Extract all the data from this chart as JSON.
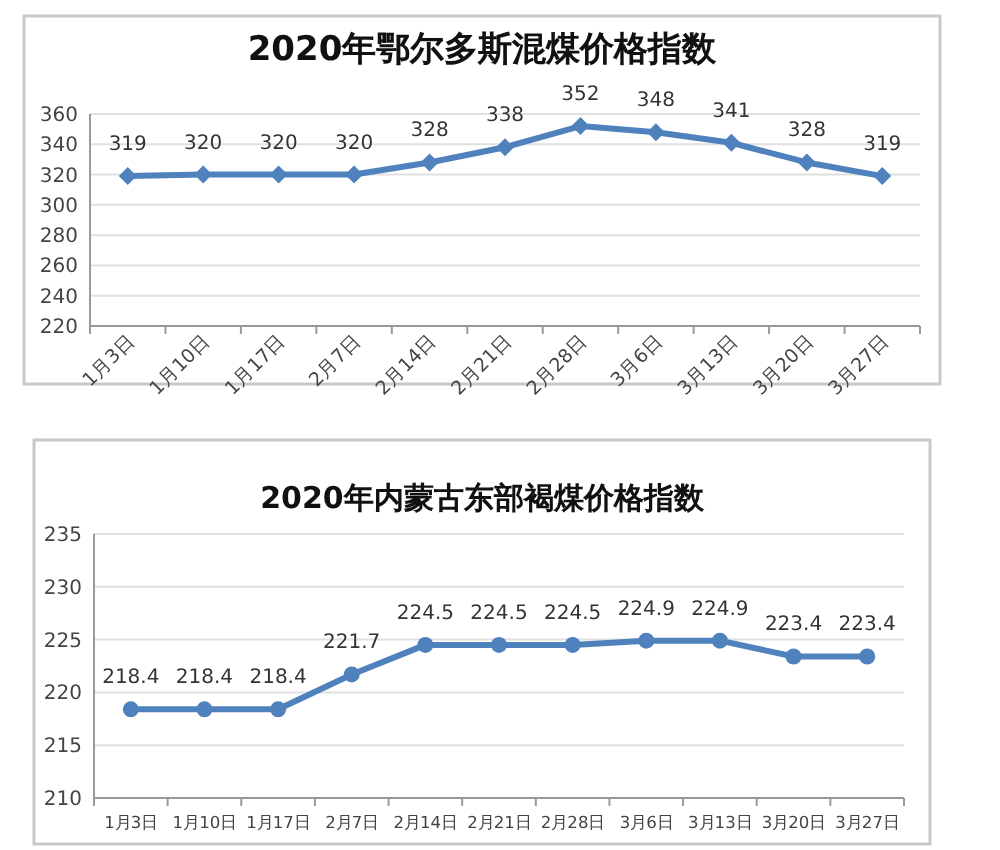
{
  "chart_data": [
    {
      "type": "line",
      "title": "2020年鄂尔多斯混煤价格指数",
      "categories": [
        "1月3日",
        "1月10日",
        "1月17日",
        "2月7日",
        "2月14日",
        "2月21日",
        "2月28日",
        "3月6日",
        "3月13日",
        "3月20日",
        "3月27日"
      ],
      "series": [
        {
          "color": "#4f81bd",
          "values": [
            319,
            320,
            320,
            320,
            328,
            338,
            352,
            348,
            341,
            328,
            319
          ]
        }
      ],
      "ylim": [
        220,
        360
      ],
      "yticks": [
        220,
        240,
        260,
        280,
        300,
        320,
        340,
        360
      ],
      "grid": "y",
      "marker": "diamond",
      "data_labels": true
    },
    {
      "type": "line",
      "title": "2020年内蒙古东部褐煤价格指数",
      "categories": [
        "1月3日",
        "1月10日",
        "1月17日",
        "2月7日",
        "2月14日",
        "2月21日",
        "2月28日",
        "3月6日",
        "3月13日",
        "3月20日",
        "3月27日"
      ],
      "series": [
        {
          "color": "#4f81bd",
          "values": [
            218.4,
            218.4,
            218.4,
            221.7,
            224.5,
            224.5,
            224.5,
            224.9,
            224.9,
            223.4,
            223.4
          ]
        }
      ],
      "ylim": [
        210,
        235
      ],
      "yticks": [
        210,
        215,
        220,
        225,
        230,
        235
      ],
      "grid": "y",
      "marker": "circle",
      "data_labels": true
    }
  ]
}
